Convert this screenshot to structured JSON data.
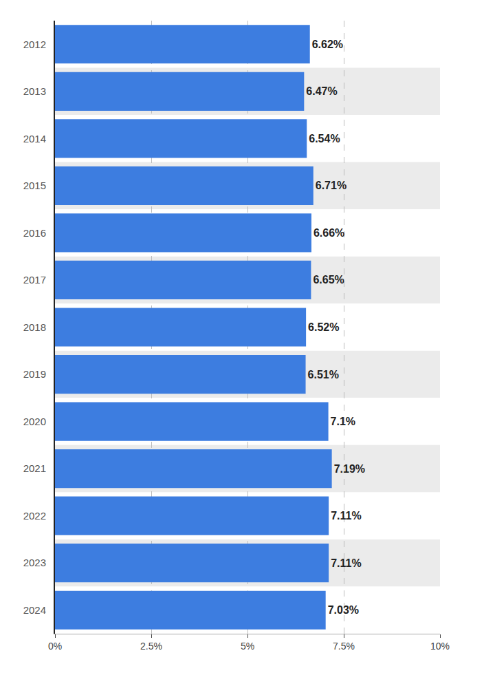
{
  "chart_data": {
    "type": "bar",
    "orientation": "horizontal",
    "categories": [
      "2012",
      "2013",
      "2014",
      "2015",
      "2016",
      "2017",
      "2018",
      "2019",
      "2020",
      "2021",
      "2022",
      "2023",
      "2024"
    ],
    "values": [
      6.62,
      6.47,
      6.54,
      6.71,
      6.66,
      6.65,
      6.52,
      6.51,
      7.1,
      7.19,
      7.11,
      7.11,
      7.03
    ],
    "value_labels": [
      "6.62%",
      "6.47%",
      "6.54%",
      "6.71%",
      "6.66%",
      "6.65%",
      "6.52%",
      "6.51%",
      "7.1%",
      "7.19%",
      "7.11%",
      "7.11%",
      "7.03%"
    ],
    "color": "#3d7de0",
    "xlim": [
      0,
      10
    ],
    "xticks": [
      {
        "value": 0,
        "label": "0%"
      },
      {
        "value": 2.5,
        "label": "2.5%"
      },
      {
        "value": 5.0,
        "label": "5%"
      },
      {
        "value": 7.5,
        "label": "7.5%"
      },
      {
        "value": 10.0,
        "label": "10%"
      }
    ],
    "grid": true,
    "data_labels": true
  }
}
